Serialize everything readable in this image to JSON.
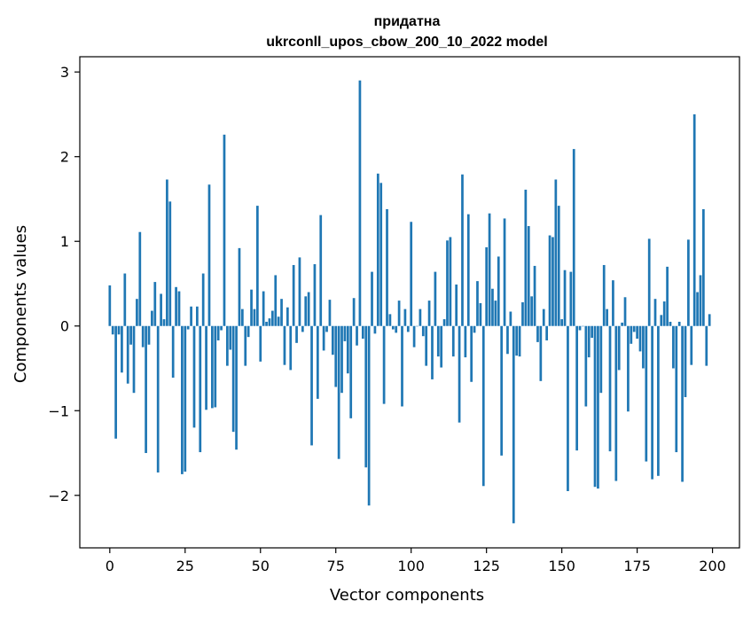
{
  "chart_data": {
    "type": "bar",
    "title": "придатна",
    "subtitle": "ukrconll_upos_cbow_200_10_2022 model",
    "xlabel": "Vector components",
    "ylabel": "Components values",
    "xlim": [
      -9.95,
      208.95
    ],
    "ylim": [
      -2.62,
      3.18
    ],
    "xticks": [
      0,
      25,
      50,
      75,
      100,
      125,
      150,
      175,
      200
    ],
    "yticks": [
      -2,
      -1,
      0,
      1,
      2,
      3
    ],
    "ytick_labels": [
      "−2",
      "−1",
      "0",
      "1",
      "2",
      "3"
    ],
    "grid": false,
    "bar_color": "#1f77b4",
    "x": [
      0,
      1,
      2,
      3,
      4,
      5,
      6,
      7,
      8,
      9,
      10,
      11,
      12,
      13,
      14,
      15,
      16,
      17,
      18,
      19,
      20,
      21,
      22,
      23,
      24,
      25,
      26,
      27,
      28,
      29,
      30,
      31,
      32,
      33,
      34,
      35,
      36,
      37,
      38,
      39,
      40,
      41,
      42,
      43,
      44,
      45,
      46,
      47,
      48,
      49,
      50,
      51,
      52,
      53,
      54,
      55,
      56,
      57,
      58,
      59,
      60,
      61,
      62,
      63,
      64,
      65,
      66,
      67,
      68,
      69,
      70,
      71,
      72,
      73,
      74,
      75,
      76,
      77,
      78,
      79,
      80,
      81,
      82,
      83,
      84,
      85,
      86,
      87,
      88,
      89,
      90,
      91,
      92,
      93,
      94,
      95,
      96,
      97,
      98,
      99,
      100,
      101,
      102,
      103,
      104,
      105,
      106,
      107,
      108,
      109,
      110,
      111,
      112,
      113,
      114,
      115,
      116,
      117,
      118,
      119,
      120,
      121,
      122,
      123,
      124,
      125,
      126,
      127,
      128,
      129,
      130,
      131,
      132,
      133,
      134,
      135,
      136,
      137,
      138,
      139,
      140,
      141,
      142,
      143,
      144,
      145,
      146,
      147,
      148,
      149,
      150,
      151,
      152,
      153,
      154,
      155,
      156,
      157,
      158,
      159,
      160,
      161,
      162,
      163,
      164,
      165,
      166,
      167,
      168,
      169,
      170,
      171,
      172,
      173,
      174,
      175,
      176,
      177,
      178,
      179,
      180,
      181,
      182,
      183,
      184,
      185,
      186,
      187,
      188,
      189,
      190,
      191,
      192,
      193,
      194,
      195,
      196,
      197,
      198,
      199
    ],
    "values": [
      0.48,
      -0.1,
      -1.33,
      -0.1,
      -0.55,
      0.62,
      -0.68,
      -0.22,
      -0.79,
      0.32,
      1.11,
      -0.25,
      -1.5,
      -0.22,
      0.18,
      0.52,
      -1.73,
      0.38,
      0.08,
      1.73,
      1.47,
      -0.61,
      0.46,
      0.41,
      -1.75,
      -1.72,
      -0.04,
      0.23,
      -1.2,
      0.23,
      -1.49,
      0.62,
      -0.99,
      1.67,
      -0.97,
      -0.96,
      -0.17,
      -0.05,
      2.26,
      -0.47,
      -0.28,
      -1.25,
      -1.46,
      0.92,
      0.2,
      -0.47,
      -0.13,
      0.43,
      0.2,
      1.42,
      -0.42,
      0.41,
      0.05,
      0.09,
      0.18,
      0.6,
      0.11,
      0.32,
      -0.46,
      0.22,
      -0.52,
      0.72,
      -0.2,
      0.81,
      -0.07,
      0.35,
      0.4,
      -1.41,
      0.73,
      -0.86,
      1.31,
      -0.29,
      -0.07,
      0.31,
      -0.34,
      -0.72,
      -1.57,
      -0.79,
      -0.18,
      -0.56,
      -1.09,
      0.33,
      -0.23,
      2.9,
      -0.15,
      -1.67,
      -2.12,
      0.64,
      -0.09,
      1.8,
      1.69,
      -0.92,
      1.38,
      0.14,
      -0.04,
      -0.08,
      0.3,
      -0.95,
      0.2,
      -0.07,
      1.23,
      -0.25,
      0.0,
      0.2,
      -0.12,
      -0.47,
      0.3,
      -0.63,
      0.64,
      -0.36,
      -0.49,
      0.08,
      1.01,
      1.05,
      -0.36,
      0.49,
      -1.14,
      1.79,
      -0.37,
      1.32,
      -0.66,
      -0.08,
      0.53,
      0.27,
      -1.89,
      0.93,
      1.33,
      0.44,
      0.3,
      0.82,
      -1.53,
      1.27,
      -0.33,
      0.17,
      -2.33,
      -0.35,
      -0.36,
      0.28,
      1.61,
      1.18,
      0.35,
      0.71,
      -0.19,
      -0.65,
      0.2,
      -0.17,
      1.07,
      1.05,
      1.73,
      1.42,
      0.08,
      0.66,
      -1.95,
      0.64,
      2.09,
      -1.47,
      -0.05,
      0.0,
      -0.95,
      -0.37,
      -0.14,
      -1.9,
      -1.92,
      -0.79,
      0.72,
      0.2,
      -1.48,
      0.54,
      -1.83,
      -0.52,
      0.04,
      0.34,
      -1.01,
      -0.21,
      -0.07,
      -0.15,
      -0.3,
      -0.5,
      -1.6,
      1.03,
      -1.81,
      0.32,
      -1.77,
      0.13,
      0.29,
      0.7,
      0.05,
      -0.5,
      -1.49,
      0.05,
      -1.84,
      -0.84,
      1.02,
      -0.46,
      2.5,
      0.4,
      0.6,
      1.38,
      -0.47,
      0.14
    ]
  }
}
